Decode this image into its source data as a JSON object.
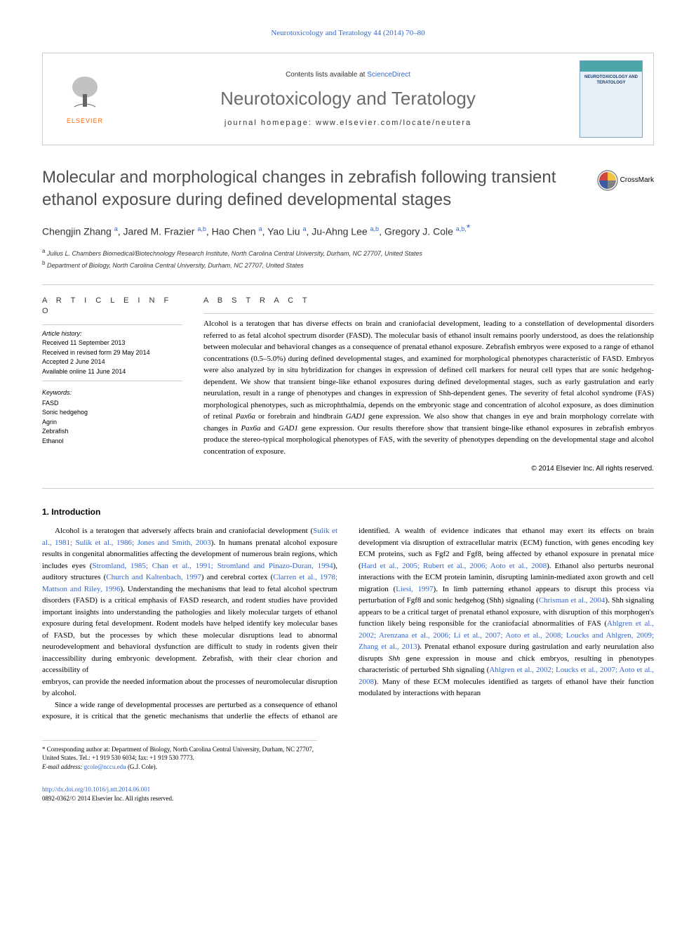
{
  "top_link": "Neurotoxicology and Teratology 44 (2014) 70–80",
  "header": {
    "elsevier_label": "ELSEVIER",
    "contents_prefix": "Contents lists available at ",
    "contents_link": "ScienceDirect",
    "journal_name": "Neurotoxicology and Teratology",
    "homepage_prefix": "journal homepage: ",
    "homepage_link": "www.elsevier.com/locate/neutera",
    "cover_title": "NEUROTOXICOLOGY AND TERATOLOGY"
  },
  "colors": {
    "link": "#3366cc",
    "elsevier_orange": "#ff6600",
    "title_grey": "#505050",
    "journal_grey": "#6b6b6b",
    "border": "#cccccc",
    "cover_bg": "#e8f0f8",
    "cover_border": "#7aa0c4",
    "teal": "#4ca8a8",
    "crossmark_red": "#d4463c",
    "crossmark_yellow": "#f5c344",
    "crossmark_grey": "#818285",
    "crossmark_blue": "#3b5ba5"
  },
  "crossmark_label": "CrossMark",
  "article": {
    "title": "Molecular and morphological changes in zebrafish following transient ethanol exposure during defined developmental stages",
    "authors_html": "Chengjin Zhang <span class='sup'><a href='#'>a</a></span>, Jared M. Frazier <span class='sup'><a href='#'>a,b</a></span>, Hao Chen <span class='sup'><a href='#'>a</a></span>, Yao Liu <span class='sup'><a href='#'>a</a></span>, Ju-Ahng Lee <span class='sup'><a href='#'>a,b</a></span>, Gregory J. Cole <span class='sup'><a href='#'>a,b,</a></span><span class='star'>*</span>",
    "affiliations": [
      {
        "sup": "a",
        "text": "Julius L. Chambers Biomedical/Biotechnology Research Institute, North Carolina Central University, Durham, NC 27707, United States"
      },
      {
        "sup": "b",
        "text": "Department of Biology, North Carolina Central University, Durham, NC 27707, United States"
      }
    ]
  },
  "info": {
    "heading": "A R T I C L E   I N F O",
    "history_label": "Article history:",
    "received": "Received 11 September 2013",
    "revised": "Received in revised form 29 May 2014",
    "accepted": "Accepted 2 June 2014",
    "online": "Available online 11 June 2014",
    "keywords_label": "Keywords:",
    "keywords": [
      "FASD",
      "Sonic hedgehog",
      "Agrin",
      "Zebrafish",
      "Ethanol"
    ]
  },
  "abstract": {
    "heading": "A B S T R A C T",
    "text": "Alcohol is a teratogen that has diverse effects on brain and craniofacial development, leading to a constellation of developmental disorders referred to as fetal alcohol spectrum disorder (FASD). The molecular basis of ethanol insult remains poorly understood, as does the relationship between molecular and behavioral changes as a consequence of prenatal ethanol exposure. Zebrafish embryos were exposed to a range of ethanol concentrations (0.5–5.0%) during defined developmental stages, and examined for morphological phenotypes characteristic of FASD. Embryos were also analyzed by in situ hybridization for changes in expression of defined cell markers for neural cell types that are sonic hedgehog-dependent. We show that transient binge-like ethanol exposures during defined developmental stages, such as early gastrulation and early neurulation, result in a range of phenotypes and changes in expression of Shh-dependent genes. The severity of fetal alcohol syndrome (FAS) morphological phenotypes, such as microphthalmia, depends on the embryonic stage and concentration of alcohol exposure, as does diminution of retinal <span class='italic'>Pax6a</span> or forebrain and hindbrain <span class='italic'>GAD1</span> gene expression. We also show that changes in eye and brain morphology correlate with changes in <span class='italic'>Pax6a</span> and <span class='italic'>GAD1</span> gene expression. Our results therefore show that transient binge-like ethanol exposures in zebrafish embryos produce the stereo-typical morphological phenotypes of FAS, with the severity of phenotypes depending on the developmental stage and alcohol concentration of exposure.",
    "copyright": "© 2014 Elsevier Inc. All rights reserved."
  },
  "body": {
    "section_heading": "1. Introduction",
    "para1": "Alcohol is a teratogen that adversely affects brain and craniofacial development (<a href='#'>Sulik et al., 1981; Sulik et al., 1986; Jones and Smith, 2003</a>). In humans prenatal alcohol exposure results in congenital abnormalities affecting the development of numerous brain regions, which includes eyes (<a href='#'>Stromland, 1985; Chan et al., 1991; Stromland and Pinazo-Duran, 1994</a>), auditory structures (<a href='#'>Church and Kaltenbach, 1997</a>) and cerebral cortex (<a href='#'>Clarren et al., 1978; Mattson and Riley, 1996</a>). Understanding the mechanisms that lead to fetal alcohol spectrum disorders (FASD) is a critical emphasis of FASD research, and rodent studies have provided important insights into understanding the pathologies and likely molecular targets of ethanol exposure during fetal development. Rodent models have helped identify key molecular bases of FASD, but the processes by which these molecular disruptions lead to abnormal neurodevelopment and behavioral dysfunction are difficult to study in rodents given their inaccessibility during embryonic development. Zebrafish, with their clear chorion and accessibility of",
    "para2": "embryos, can provide the needed information about the processes of neuromolecular disruption by alcohol.",
    "para3": "Since a wide range of developmental processes are perturbed as a consequence of ethanol exposure, it is critical that the genetic mechanisms that underlie the effects of ethanol are identified. A wealth of evidence indicates that ethanol may exert its effects on brain development via disruption of extracellular matrix (ECM) function, with genes encoding key ECM proteins, such as Fgf2 and Fgf8, being affected by ethanol exposure in prenatal mice (<a href='#'>Hard et al., 2005; Rubert et al., 2006; Aoto et al., 2008</a>). Ethanol also perturbs neuronal interactions with the ECM protein laminin, disrupting laminin-mediated axon growth and cell migration (<a href='#'>Liesi, 1997</a>). In limb patterning ethanol appears to disrupt this process via perturbation of Fgf8 and sonic hedgehog (Shh) signaling (<a href='#'>Chrisman et al., 2004</a>). Shh signaling appears to be a critical target of prenatal ethanol exposure, with disruption of this morphogen's function likely being responsible for the craniofacial abnormalities of FAS (<a href='#'>Ahlgren et al., 2002; Arenzana et al., 2006; Li et al., 2007; Aoto et al., 2008; Loucks and Ahlgren, 2009; Zhang et al., 2013</a>). Prenatal ethanol exposure during gastrulation and early neurulation also disrupts <span class='italic'>Shh</span> gene expression in mouse and chick embryos, resulting in phenotypes characteristic of perturbed Shh signaling (<a href='#'>Ahlgren et al., 2002; Loucks et al., 2007; Aoto et al., 2008</a>). Many of these ECM molecules identified as targets of ethanol have their function modulated by interactions with heparan"
  },
  "footnote": {
    "star": "*",
    "text": "Corresponding author at: Department of Biology, North Carolina Central University, Durham, NC 27707, United States. Tel.: +1 919 530 6034; fax: +1 919 530 7773.",
    "email_label": "E-mail address:",
    "email": "gcole@nccu.edu",
    "email_name": "(G.J. Cole)."
  },
  "bottom": {
    "doi": "http://dx.doi.org/10.1016/j.ntt.2014.06.001",
    "issn": "0892-0362/© 2014 Elsevier Inc. All rights reserved."
  }
}
